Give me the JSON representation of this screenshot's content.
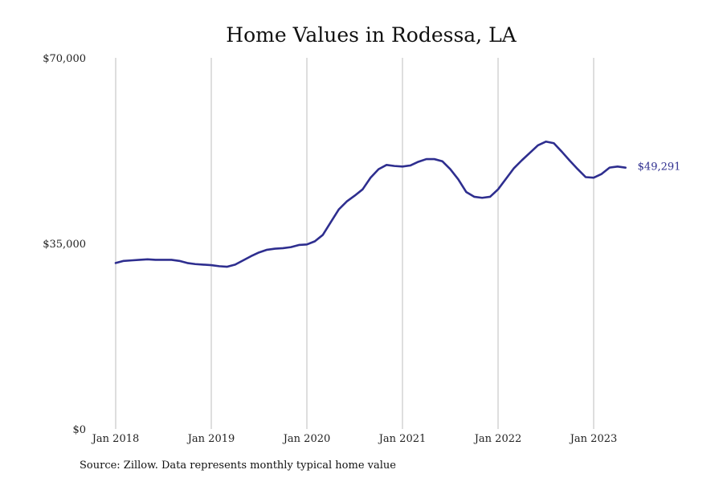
{
  "chart_data": {
    "type": "line",
    "title": "Home Values in Rodessa, LA",
    "xlabel": "",
    "ylabel": "",
    "ylim": [
      0,
      70000
    ],
    "y_ticks": [
      0,
      35000,
      70000
    ],
    "y_tick_labels": [
      "$0",
      "$35,000",
      "$70,000"
    ],
    "x_ticks": [
      "2018-01",
      "2019-01",
      "2020-01",
      "2021-01",
      "2022-01",
      "2023-01"
    ],
    "x_tick_labels": [
      "Jan 2018",
      "Jan 2019",
      "Jan 2020",
      "Jan 2021",
      "Jan 2022",
      "Jan 2023"
    ],
    "grid": "vertical",
    "legend": "none",
    "end_label": "$49,291",
    "line_color": "#2e2e8f",
    "series": [
      {
        "x": [
          "2018-01",
          "2018-02",
          "2018-03",
          "2018-04",
          "2018-05",
          "2018-06",
          "2018-07",
          "2018-08",
          "2018-09",
          "2018-10",
          "2018-11",
          "2018-12",
          "2019-01",
          "2019-02",
          "2019-03",
          "2019-04",
          "2019-05",
          "2019-06",
          "2019-07",
          "2019-08",
          "2019-09",
          "2019-10",
          "2019-11",
          "2019-12",
          "2020-01",
          "2020-02",
          "2020-03",
          "2020-04",
          "2020-05",
          "2020-06",
          "2020-07",
          "2020-08",
          "2020-09",
          "2020-10",
          "2020-11",
          "2020-12",
          "2021-01",
          "2021-02",
          "2021-03",
          "2021-04",
          "2021-05",
          "2021-06",
          "2021-07",
          "2021-08",
          "2021-09",
          "2021-10",
          "2021-11",
          "2021-12",
          "2022-01",
          "2022-02",
          "2022-03",
          "2022-04",
          "2022-05",
          "2022-06",
          "2022-07",
          "2022-08",
          "2022-09",
          "2022-10",
          "2022-11",
          "2022-12",
          "2023-01",
          "2023-02",
          "2023-03",
          "2023-04",
          "2023-05"
        ],
        "values": [
          31300,
          31700,
          31800,
          31900,
          32000,
          31900,
          31900,
          31900,
          31700,
          31300,
          31100,
          31000,
          30900,
          30700,
          30600,
          31000,
          31800,
          32600,
          33300,
          33800,
          34000,
          34100,
          34300,
          34700,
          34800,
          35400,
          36600,
          39000,
          41400,
          42900,
          44000,
          45200,
          47400,
          49000,
          49800,
          49600,
          49500,
          49700,
          50400,
          50900,
          50900,
          50500,
          49000,
          47100,
          44700,
          43800,
          43600,
          43800,
          45200,
          47200,
          49200,
          50700,
          52100,
          53500,
          54200,
          53900,
          52300,
          50600,
          49000,
          47500,
          47400,
          48100,
          49300,
          49500,
          49291
        ]
      }
    ]
  },
  "source_text": "Source: Zillow. Data represents monthly typical home value"
}
